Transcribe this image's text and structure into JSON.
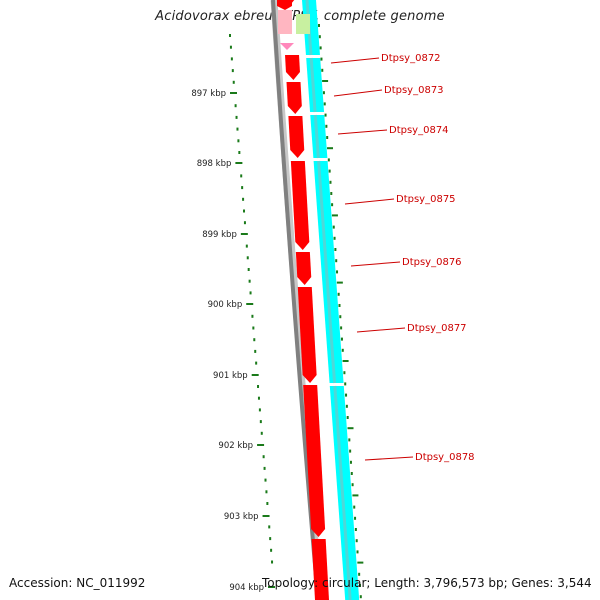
{
  "title": "Acidovorax ebreus TPSY, complete genome",
  "accession": "Accession: NC_011992",
  "topology": "Topology: circular; Length: 3,796,573 bp; Genes: 3,544",
  "ruler": {
    "labels": [
      "897 kbp",
      "898 kbp",
      "899 kbp",
      "900 kbp",
      "901 kbp",
      "902 kbp",
      "903 kbp",
      "904 kbp"
    ],
    "tick_color": "#1a7a1a"
  },
  "genes": [
    {
      "label": "Dtpsy_0872"
    },
    {
      "label": "Dtpsy_0873"
    },
    {
      "label": "Dtpsy_0874"
    },
    {
      "label": "Dtpsy_0875"
    },
    {
      "label": "Dtpsy_0876"
    },
    {
      "label": "Dtpsy_0877"
    },
    {
      "label": "Dtpsy_0878"
    }
  ],
  "colors": {
    "gene": "#ff0000",
    "gene_label": "#cc0000",
    "backbone": "#808080",
    "feature_track": "#00ffff",
    "pink_feature": "#ffb6c1",
    "green_feature": "#c8f0a0",
    "text": "#222222"
  }
}
